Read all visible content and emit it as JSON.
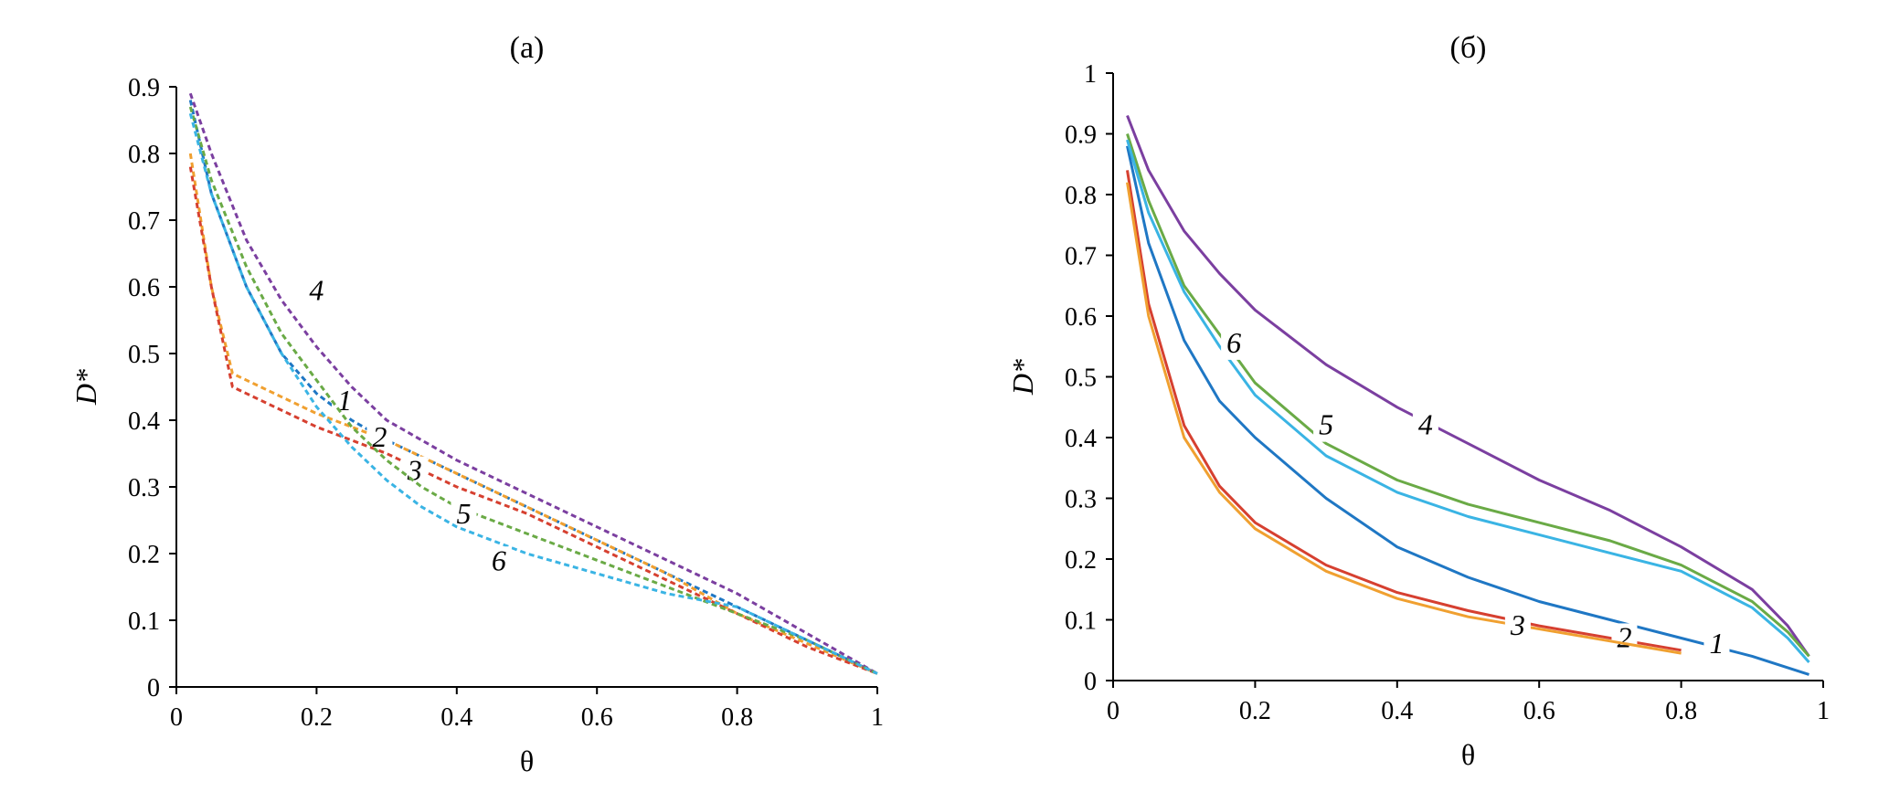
{
  "chart_data": [
    {
      "type": "line",
      "title": "(а)",
      "xlabel": "θ",
      "ylabel": "D*",
      "xlim": [
        0,
        1
      ],
      "ylim": [
        0,
        0.9
      ],
      "xticks": [
        "0",
        "0.2",
        "0.4",
        "0.6",
        "0.8",
        "1"
      ],
      "yticks": [
        "0",
        "0.1",
        "0.2",
        "0.3",
        "0.4",
        "0.5",
        "0.6",
        "0.7",
        "0.8",
        "0.9"
      ],
      "grid": false,
      "line_style": "dashed",
      "series": [
        {
          "name": "1",
          "color": "#1f77c4",
          "label_at": [
            0.24,
            0.415
          ],
          "x": [
            0.02,
            0.05,
            0.1,
            0.15,
            0.2,
            0.25,
            0.3,
            0.4,
            0.5,
            0.6,
            0.7,
            0.8,
            0.9,
            1.0
          ],
          "y": [
            0.88,
            0.74,
            0.6,
            0.5,
            0.44,
            0.4,
            0.37,
            0.32,
            0.27,
            0.22,
            0.17,
            0.12,
            0.07,
            0.02
          ]
        },
        {
          "name": "2",
          "color": "#f0a030",
          "label_at": [
            0.29,
            0.36
          ],
          "x": [
            0.02,
            0.05,
            0.08,
            0.1,
            0.2,
            0.3,
            0.4,
            0.5,
            0.6,
            0.7,
            0.8,
            0.9,
            1.0
          ],
          "y": [
            0.8,
            0.6,
            0.47,
            0.46,
            0.41,
            0.37,
            0.32,
            0.27,
            0.22,
            0.17,
            0.11,
            0.065,
            0.02
          ]
        },
        {
          "name": "3",
          "color": "#d64030",
          "label_at": [
            0.34,
            0.31
          ],
          "x": [
            0.02,
            0.05,
            0.08,
            0.1,
            0.2,
            0.3,
            0.4,
            0.5,
            0.6,
            0.7,
            0.8,
            0.9,
            1.0
          ],
          "y": [
            0.78,
            0.6,
            0.45,
            0.44,
            0.39,
            0.35,
            0.3,
            0.26,
            0.21,
            0.16,
            0.11,
            0.06,
            0.02
          ]
        },
        {
          "name": "4",
          "color": "#7b3fa0",
          "label_at": [
            0.2,
            0.58
          ],
          "x": [
            0.02,
            0.05,
            0.1,
            0.15,
            0.2,
            0.25,
            0.3,
            0.4,
            0.5,
            0.6,
            0.7,
            0.8,
            0.9,
            1.0
          ],
          "y": [
            0.89,
            0.8,
            0.67,
            0.58,
            0.51,
            0.45,
            0.4,
            0.34,
            0.29,
            0.24,
            0.19,
            0.14,
            0.08,
            0.02
          ]
        },
        {
          "name": "5",
          "color": "#6aaa46",
          "label_at": [
            0.41,
            0.245
          ],
          "x": [
            0.02,
            0.05,
            0.1,
            0.15,
            0.2,
            0.25,
            0.3,
            0.35,
            0.4,
            0.5,
            0.6,
            0.7,
            0.8,
            0.9,
            1.0
          ],
          "y": [
            0.87,
            0.76,
            0.63,
            0.53,
            0.46,
            0.39,
            0.34,
            0.3,
            0.27,
            0.23,
            0.19,
            0.15,
            0.11,
            0.07,
            0.02
          ]
        },
        {
          "name": "6",
          "color": "#3ab4e4",
          "label_at": [
            0.46,
            0.175
          ],
          "x": [
            0.02,
            0.05,
            0.1,
            0.15,
            0.2,
            0.25,
            0.3,
            0.35,
            0.4,
            0.5,
            0.6,
            0.7,
            0.8,
            0.9,
            1.0
          ],
          "y": [
            0.86,
            0.74,
            0.6,
            0.5,
            0.42,
            0.36,
            0.31,
            0.27,
            0.24,
            0.2,
            0.17,
            0.14,
            0.12,
            0.07,
            0.02
          ]
        }
      ]
    },
    {
      "type": "line",
      "title": "(б)",
      "xlabel": "θ",
      "ylabel": "D*",
      "xlim": [
        0,
        1
      ],
      "ylim": [
        0,
        1
      ],
      "xticks": [
        "0",
        "0.2",
        "0.4",
        "0.6",
        "0.8",
        "1"
      ],
      "yticks": [
        "0",
        "0.1",
        "0.2",
        "0.3",
        "0.4",
        "0.5",
        "0.6",
        "0.7",
        "0.8",
        "0.9",
        "1"
      ],
      "grid": false,
      "line_style": "solid",
      "series": [
        {
          "name": "1",
          "color": "#1f77c4",
          "label_at": [
            0.85,
            0.045
          ],
          "x": [
            0.02,
            0.05,
            0.1,
            0.15,
            0.2,
            0.3,
            0.4,
            0.5,
            0.6,
            0.7,
            0.8,
            0.9,
            0.98
          ],
          "y": [
            0.88,
            0.72,
            0.56,
            0.46,
            0.4,
            0.3,
            0.22,
            0.17,
            0.13,
            0.1,
            0.07,
            0.04,
            0.01
          ]
        },
        {
          "name": "2",
          "color": "#d64030",
          "label_at": [
            0.72,
            0.055
          ],
          "x": [
            0.02,
            0.05,
            0.1,
            0.15,
            0.2,
            0.3,
            0.4,
            0.5,
            0.6,
            0.7,
            0.8
          ],
          "y": [
            0.84,
            0.62,
            0.42,
            0.32,
            0.26,
            0.19,
            0.145,
            0.115,
            0.09,
            0.07,
            0.05
          ]
        },
        {
          "name": "3",
          "color": "#f0a030",
          "label_at": [
            0.57,
            0.075
          ],
          "x": [
            0.02,
            0.05,
            0.1,
            0.15,
            0.2,
            0.3,
            0.4,
            0.5,
            0.6,
            0.7,
            0.8
          ],
          "y": [
            0.82,
            0.6,
            0.4,
            0.31,
            0.25,
            0.18,
            0.135,
            0.105,
            0.085,
            0.065,
            0.045
          ]
        },
        {
          "name": "4",
          "color": "#7b3fa0",
          "label_at": [
            0.44,
            0.405
          ],
          "x": [
            0.02,
            0.05,
            0.1,
            0.15,
            0.2,
            0.3,
            0.4,
            0.5,
            0.6,
            0.7,
            0.8,
            0.9,
            0.95,
            0.98
          ],
          "y": [
            0.93,
            0.84,
            0.74,
            0.67,
            0.61,
            0.52,
            0.45,
            0.39,
            0.33,
            0.28,
            0.22,
            0.15,
            0.09,
            0.04
          ]
        },
        {
          "name": "5",
          "color": "#6aaa46",
          "label_at": [
            0.3,
            0.405
          ],
          "x": [
            0.02,
            0.05,
            0.1,
            0.15,
            0.2,
            0.3,
            0.4,
            0.5,
            0.6,
            0.7,
            0.8,
            0.9,
            0.95,
            0.98
          ],
          "y": [
            0.9,
            0.79,
            0.65,
            0.57,
            0.49,
            0.39,
            0.33,
            0.29,
            0.26,
            0.23,
            0.19,
            0.13,
            0.08,
            0.04
          ]
        },
        {
          "name": "6",
          "color": "#3ab4e4",
          "label_at": [
            0.17,
            0.54
          ],
          "x": [
            0.02,
            0.05,
            0.1,
            0.15,
            0.2,
            0.3,
            0.4,
            0.5,
            0.6,
            0.7,
            0.8,
            0.9,
            0.95,
            0.98
          ],
          "y": [
            0.89,
            0.77,
            0.64,
            0.55,
            0.47,
            0.37,
            0.31,
            0.27,
            0.24,
            0.21,
            0.18,
            0.12,
            0.07,
            0.03
          ]
        }
      ]
    }
  ]
}
